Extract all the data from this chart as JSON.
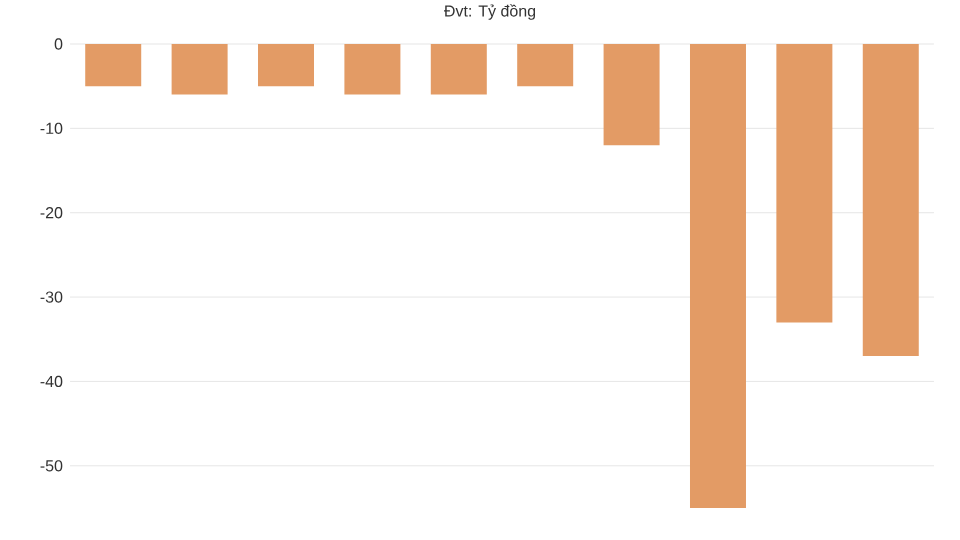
{
  "chart_data": {
    "type": "bar",
    "title": "Đvt: Tỷ đồng",
    "categories": [
      null,
      null,
      null,
      null,
      null,
      null,
      null,
      null,
      null,
      null
    ],
    "values": [
      -5,
      -6,
      -5,
      -6,
      -6,
      -5,
      -12,
      -55,
      -33,
      -37
    ],
    "color": "#e39b65",
    "ylim": [
      -55,
      0
    ],
    "yticks": [
      0,
      -10,
      -20,
      -30,
      -40,
      -50
    ],
    "grid": "y"
  }
}
